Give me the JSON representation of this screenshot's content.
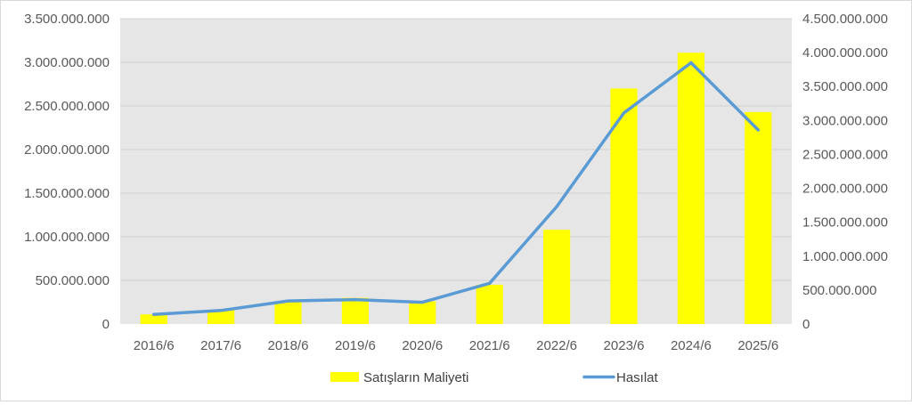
{
  "chart_data": {
    "type": "bar",
    "categories": [
      "2016/6",
      "2017/6",
      "2018/6",
      "2019/6",
      "2020/6",
      "2021/6",
      "2022/6",
      "2023/6",
      "2024/6",
      "2025/6"
    ],
    "series": [
      {
        "name": "Satışların Maliyeti",
        "type": "bar",
        "axis": "left",
        "color": "#FFFF00",
        "values": [
          110000000,
          160000000,
          260000000,
          300000000,
          260000000,
          450000000,
          1080000000,
          2700000000,
          3110000000,
          2430000000
        ]
      },
      {
        "name": "Hasılat",
        "type": "line",
        "axis": "right",
        "color": "#5B9BD5",
        "values": [
          140000000,
          200000000,
          340000000,
          360000000,
          320000000,
          600000000,
          1730000000,
          3110000000,
          3850000000,
          2860000000
        ]
      }
    ],
    "y_left": {
      "min": 0,
      "max": 3500000000,
      "ticks": [
        0,
        500000000,
        1000000000,
        1500000000,
        2000000000,
        2500000000,
        3000000000,
        3500000000
      ],
      "tick_labels": [
        "0",
        "500.000.000",
        "1.000.000.000",
        "1.500.000.000",
        "2.000.000.000",
        "2.500.000.000",
        "3.000.000.000",
        "3.500.000.000"
      ]
    },
    "y_right": {
      "min": 0,
      "max": 4500000000,
      "ticks": [
        0,
        500000000,
        1000000000,
        1500000000,
        2000000000,
        2500000000,
        3000000000,
        3500000000,
        4000000000,
        4500000000
      ],
      "tick_labels": [
        "0",
        "500.000.000",
        "1.000.000.000",
        "1.500.000.000",
        "2.000.000.000",
        "2.500.000.000",
        "3.000.000.000",
        "3.500.000.000",
        "4.000.000.000",
        "4.500.000.000"
      ]
    },
    "grid": true,
    "plot_background": "#E6E6E6",
    "legend": "bottom"
  }
}
